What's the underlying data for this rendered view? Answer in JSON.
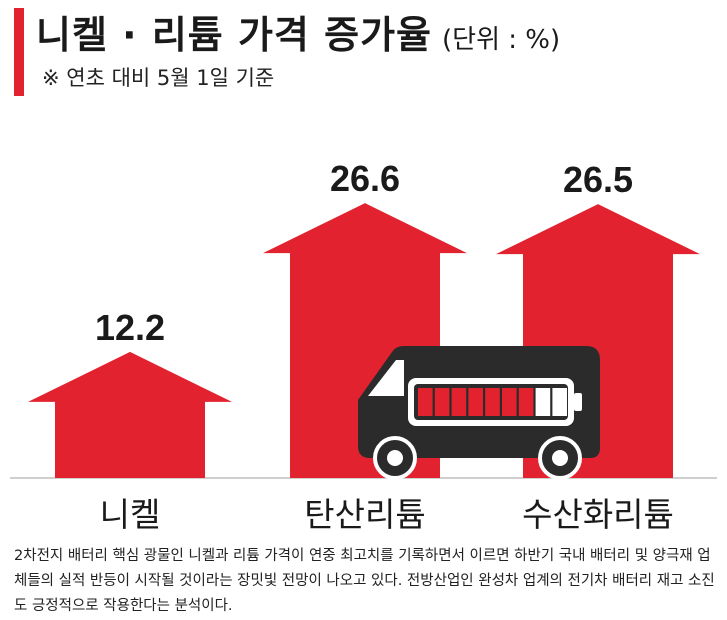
{
  "header": {
    "title": "니켈 · 리튬 가격 증가율",
    "unit": "(단위 : %)",
    "subtitle": "※ 연초 대비 5월 1일 기준"
  },
  "chart_data": {
    "type": "bar",
    "categories": [
      "니켈",
      "탄산리튬",
      "수산화리튬"
    ],
    "values": [
      12.2,
      26.6,
      26.5
    ],
    "value_labels": [
      "12.2",
      "26.6",
      "26.5"
    ],
    "bar_color": "#e2232f",
    "ylim": [
      0,
      30
    ],
    "grid": false
  },
  "illustration": {
    "icon": "battery-van-icon",
    "battery_cells_filled": 7,
    "battery_cells_total": 9
  },
  "caption": "2차전지 배터리 핵심 광물인 니켈과 리튬 가격이 연중 최고치를 기록하면서 이르면 하반기 국내 배터리 및 양극재 업체들의 실적 반등이 시작될 것이라는 장밋빛 전망이 나오고 있다. 전방산업인 완성차 업계의 전기차 배터리 재고 소진도 긍정적으로 작용한다는 분석이다."
}
